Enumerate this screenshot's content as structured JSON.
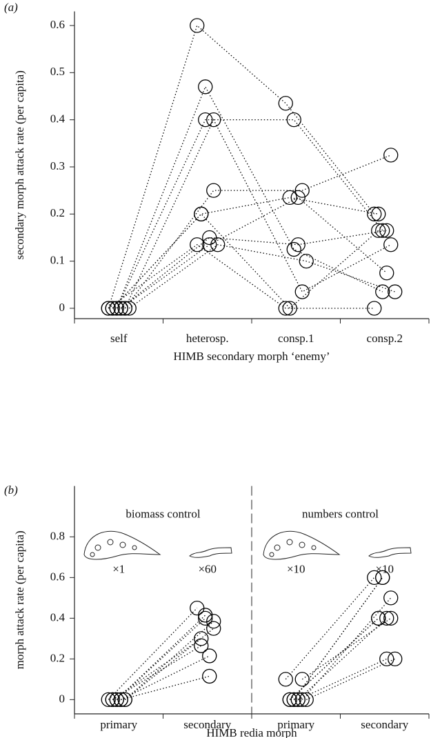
{
  "chart_data": [
    {
      "type": "line",
      "panel_label": "(a)",
      "x_label": "HIMB secondary morph ‘enemy’",
      "y_label": "secondary morph attack rate (per capita)",
      "categories": [
        "self",
        "heterosp.",
        "consp.1",
        "consp.2"
      ],
      "ylim": [
        -0.022,
        0.63
      ],
      "yticks": [
        0,
        0.1,
        0.2,
        0.3,
        0.4,
        0.5,
        0.6
      ],
      "line_style": "dotted",
      "color": "#000000",
      "series": [
        {
          "values": [
            0,
            0.6,
            0.435,
            0.2
          ]
        },
        {
          "values": [
            0,
            0.47,
            0.125,
            0.035
          ]
        },
        {
          "values": [
            0,
            0.4,
            0.4,
            0.165
          ]
        },
        {
          "values": [
            0,
            0.4,
            0.035,
            0.135
          ]
        },
        {
          "values": [
            0,
            0.25,
            0.25,
            0.325
          ]
        },
        {
          "values": [
            0,
            0.2,
            0.235,
            0.2
          ]
        },
        {
          "values": [
            0,
            0.2,
            0,
            0.165
          ]
        },
        {
          "values": [
            0,
            0.15,
            0.135,
            0.165
          ]
        },
        {
          "values": [
            0,
            0.135,
            0.235,
            0.075
          ]
        },
        {
          "values": [
            0,
            0.135,
            0.1,
            0.035
          ]
        },
        {
          "values": [
            0,
            0.135,
            0,
            0
          ]
        }
      ]
    },
    {
      "type": "grouped-line",
      "panel_label": "(b)",
      "x_label": "HIMB redia morph",
      "y_label": "morph attack rate (per capita)",
      "ylim": [
        -0.07,
        1.05
      ],
      "yticks": [
        0,
        0.2,
        0.4,
        0.6,
        0.8
      ],
      "line_style": "dotted",
      "color": "#000000",
      "groups": [
        {
          "title": "biomass control",
          "categories": [
            "primary",
            "secondary"
          ],
          "multipliers": [
            "×1",
            "×60"
          ],
          "series": [
            {
              "values": [
                0,
                0.45
              ]
            },
            {
              "values": [
                0,
                0.415
              ]
            },
            {
              "values": [
                0,
                0.4
              ]
            },
            {
              "values": [
                0,
                0.385
              ]
            },
            {
              "values": [
                0,
                0.35
              ]
            },
            {
              "values": [
                0,
                0.3
              ]
            },
            {
              "values": [
                0,
                0.265
              ]
            },
            {
              "values": [
                0,
                0.215
              ]
            },
            {
              "values": [
                0,
                0.115
              ]
            }
          ]
        },
        {
          "title": "numbers control",
          "categories": [
            "primary",
            "secondary"
          ],
          "multipliers": [
            "×10",
            "×10"
          ],
          "series": [
            {
              "values": [
                0.1,
                0.6
              ]
            },
            {
              "values": [
                0,
                0.6
              ]
            },
            {
              "values": [
                0,
                0.6
              ]
            },
            {
              "values": [
                0,
                0.5
              ]
            },
            {
              "values": [
                0.1,
                0.4
              ]
            },
            {
              "values": [
                0,
                0.4
              ]
            },
            {
              "values": [
                0,
                0.4
              ]
            },
            {
              "values": [
                0,
                0.4
              ]
            },
            {
              "values": [
                0,
                0.2
              ]
            },
            {
              "values": [
                0,
                0.2
              ]
            }
          ]
        }
      ]
    }
  ]
}
